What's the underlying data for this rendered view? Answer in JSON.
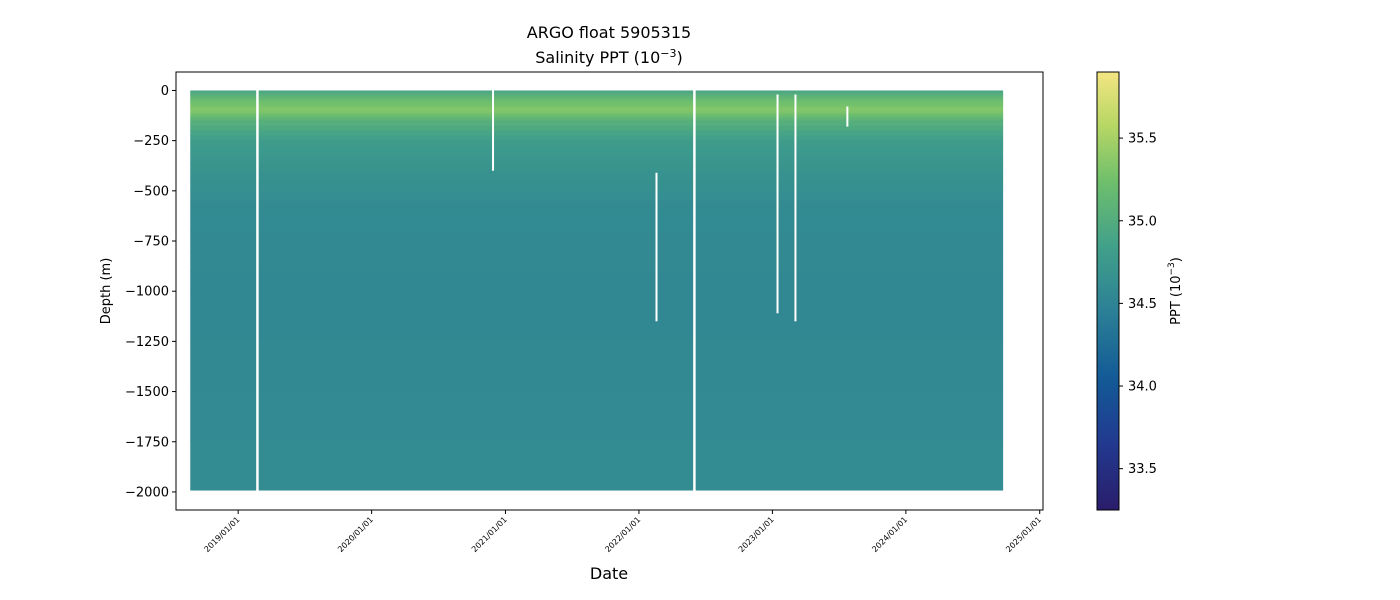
{
  "chart_data": {
    "type": "heatmap",
    "title": "ARGO float 5905315",
    "subtitle_prefix": "Salinity PPT (10",
    "subtitle_exp": "−3",
    "subtitle_suffix": ")",
    "xlabel": "Date",
    "ylabel": "Depth (m)",
    "colorbar_label_prefix": "PPT (10",
    "colorbar_label_exp": "−3",
    "colorbar_label_suffix": ")",
    "x_axis_type": "date",
    "x_range": [
      "2018-07-15",
      "2025-01-10"
    ],
    "ylim": [
      -2090,
      92
    ],
    "yticks": [
      0,
      -250,
      -500,
      -750,
      -1000,
      -1250,
      -1500,
      -1750,
      -2000
    ],
    "yticklabels": [
      "0",
      "−250",
      "−500",
      "−750",
      "−1000",
      "−1250",
      "−1500",
      "−1750",
      "−2000"
    ],
    "xticks": [
      "2019-01-01",
      "2020-01-01",
      "2021-01-01",
      "2022-01-01",
      "2023-01-01",
      "2024-01-01",
      "2025-01-01"
    ],
    "xticklabels": [
      "2019/01/01",
      "2020/01/01",
      "2021/01/01",
      "2022/01/01",
      "2023/01/01",
      "2024/01/01",
      "2025/01/01"
    ],
    "colorbar_range": [
      33.25,
      35.9
    ],
    "colorbar_ticks": [
      33.5,
      34.0,
      34.5,
      35.0,
      35.5
    ],
    "colorbar_ticklabels": [
      "33.5",
      "34.0",
      "34.5",
      "35.0",
      "35.5"
    ],
    "colormap": "haline",
    "data_start": "2018-08-23",
    "data_end": "2024-09-23",
    "profile_max_depth": -1990,
    "missing_profiles": [
      "2019-02-22",
      "2022-06-01"
    ],
    "partial_gaps": [
      {
        "date": "2020-11-28",
        "top": 0,
        "bottom": -400
      },
      {
        "date": "2022-02-18",
        "top": -410,
        "bottom": -1150
      },
      {
        "date": "2023-01-15",
        "top": -20,
        "bottom": -1110
      },
      {
        "date": "2023-03-05",
        "top": -20,
        "bottom": -1150
      },
      {
        "date": "2023-07-25",
        "top": -80,
        "bottom": -180
      }
    ],
    "depth_profile": [
      {
        "depth": 0,
        "salinity": 34.9
      },
      {
        "depth": -50,
        "salinity": 35.2
      },
      {
        "depth": -100,
        "salinity": 35.35
      },
      {
        "depth": -150,
        "salinity": 35.05
      },
      {
        "depth": -250,
        "salinity": 34.8
      },
      {
        "depth": -400,
        "salinity": 34.68
      },
      {
        "depth": -600,
        "salinity": 34.58
      },
      {
        "depth": -1000,
        "salinity": 34.55
      },
      {
        "depth": -2000,
        "salinity": 34.6
      }
    ]
  }
}
